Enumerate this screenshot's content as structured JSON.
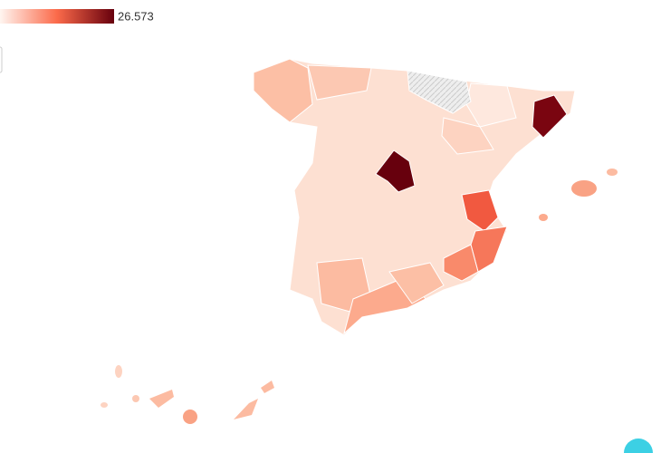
{
  "legend": {
    "max_label": "26.573"
  }
}
